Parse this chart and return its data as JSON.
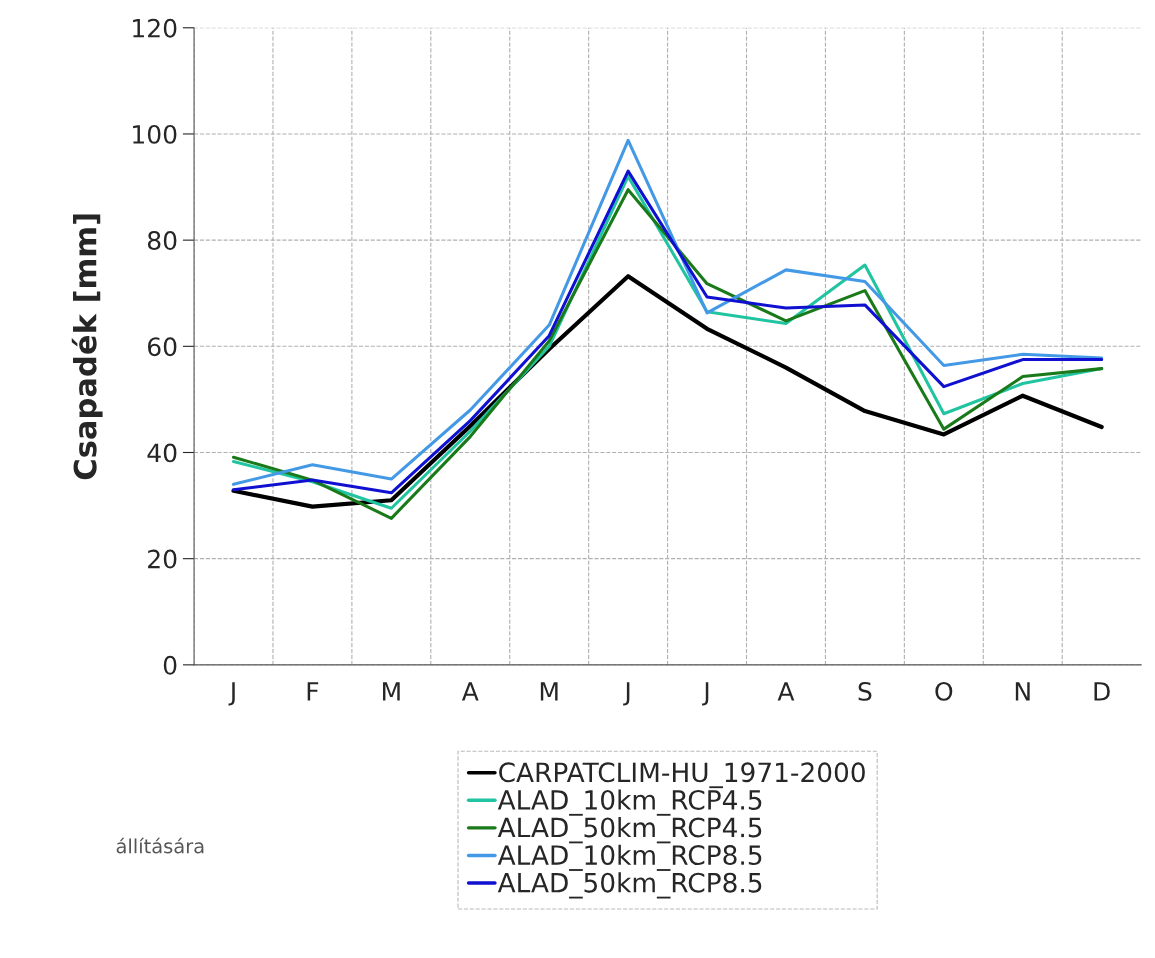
{
  "chart_data": {
    "type": "line",
    "ylabel": "Csapadék [mm]",
    "categories": [
      "J",
      "F",
      "M",
      "A",
      "M",
      "J",
      "J",
      "A",
      "S",
      "O",
      "N",
      "D"
    ],
    "series": [
      {
        "name": "CARPATCLIM-HU_1971-2000",
        "color": "#000000",
        "values": [
          32.8,
          29.8,
          31,
          45,
          59.5,
          73.2,
          63.3,
          56,
          47.8,
          43.4,
          50.7,
          44.8
        ]
      },
      {
        "name": "ALAD_10km_RCP4.5",
        "color": "#20c4a0",
        "values": [
          38.3,
          34.5,
          29.5,
          44,
          60,
          92,
          66.5,
          64.3,
          75.3,
          47.3,
          53,
          55.8
        ]
      },
      {
        "name": "ALAD_50km_RCP4.5",
        "color": "#1a7a1a",
        "values": [
          39.1,
          34.8,
          27.6,
          43,
          61,
          89.5,
          71.8,
          64.8,
          70.5,
          44.4,
          54.3,
          55.8
        ]
      },
      {
        "name": "ALAD_10km_RCP8.5",
        "color": "#4499e6",
        "values": [
          34,
          37.7,
          35,
          48,
          64,
          98.8,
          66.3,
          74.4,
          72.2,
          56.4,
          58.5,
          57.8
        ]
      },
      {
        "name": "ALAD_50km_RCP8.5",
        "color": "#1010d0",
        "values": [
          33,
          34.8,
          32.4,
          46,
          62,
          93,
          69.3,
          67.2,
          67.8,
          52.4,
          57.5,
          57.5
        ]
      }
    ],
    "ylim": [
      0,
      120
    ],
    "yticks": [
      0,
      20,
      40,
      60,
      80,
      100,
      120
    ],
    "grid": true,
    "legend": "bottom",
    "marker": "none",
    "line_style": "solid",
    "annotations": [
      "állítására"
    ]
  }
}
